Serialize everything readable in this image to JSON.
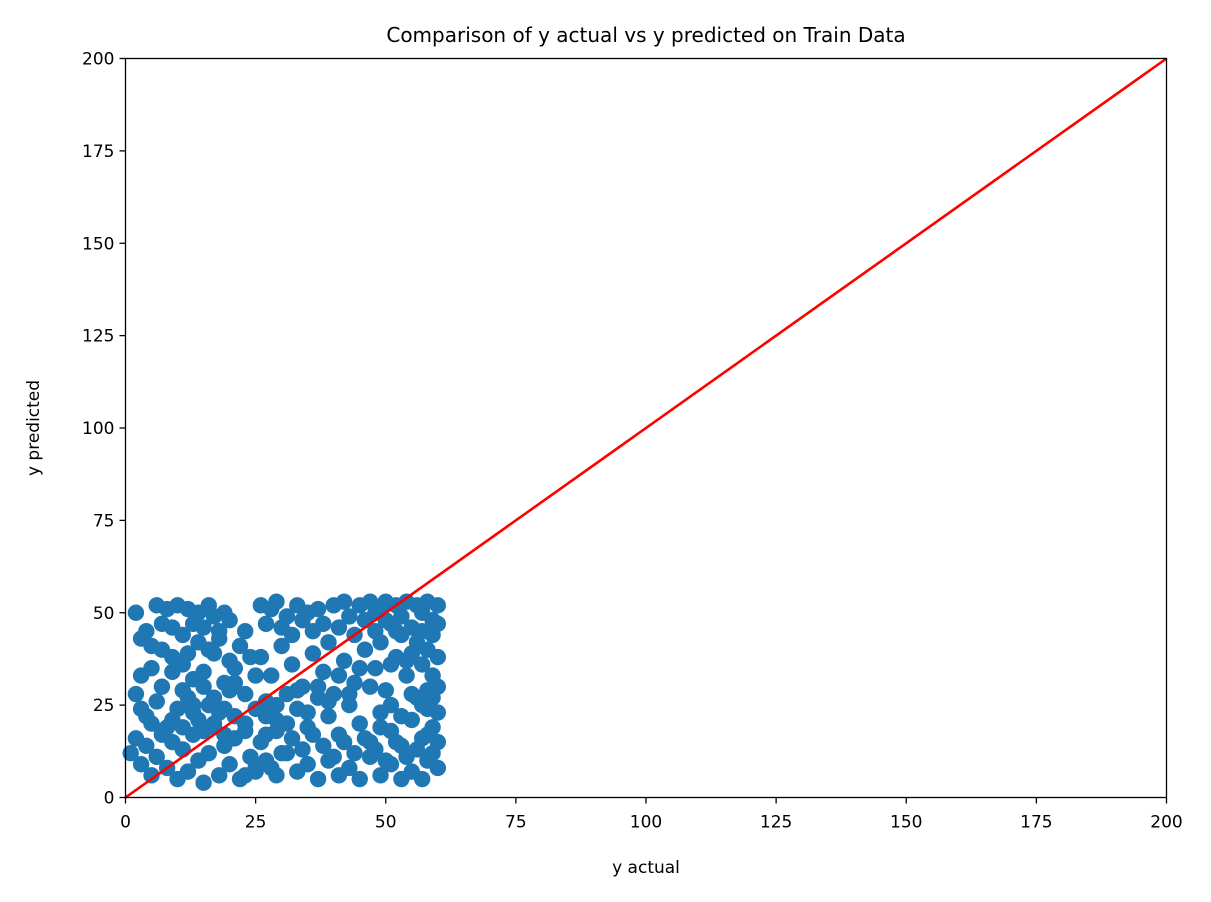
{
  "chart_data": {
    "type": "scatter",
    "title": "Comparison of y actual vs y predicted on Train Data",
    "xlabel": "y actual",
    "ylabel": "y predicted",
    "xlim": [
      0,
      200
    ],
    "ylim": [
      0,
      200
    ],
    "xticks": [
      0,
      25,
      50,
      75,
      100,
      125,
      150,
      175,
      200
    ],
    "yticks": [
      0,
      25,
      50,
      75,
      100,
      125,
      150,
      175,
      200
    ],
    "grid": false,
    "series": [
      {
        "color": "#1f77b4",
        "points": [
          [
            2,
            50
          ],
          [
            3,
            43
          ],
          [
            4,
            45
          ],
          [
            5,
            41
          ],
          [
            6,
            52
          ],
          [
            7,
            47
          ],
          [
            8,
            51
          ],
          [
            9,
            46
          ],
          [
            10,
            52
          ],
          [
            11,
            44
          ],
          [
            12,
            51
          ],
          [
            13,
            47
          ],
          [
            14,
            50
          ],
          [
            15,
            46
          ],
          [
            16,
            52
          ],
          [
            17,
            49
          ],
          [
            18,
            45
          ],
          [
            19,
            50
          ],
          [
            20,
            48
          ],
          [
            23,
            45
          ],
          [
            3,
            33
          ],
          [
            5,
            35
          ],
          [
            7,
            30
          ],
          [
            9,
            38
          ],
          [
            11,
            36
          ],
          [
            13,
            32
          ],
          [
            15,
            34
          ],
          [
            17,
            39
          ],
          [
            19,
            31
          ],
          [
            21,
            35
          ],
          [
            2,
            28
          ],
          [
            4,
            22
          ],
          [
            6,
            26
          ],
          [
            8,
            19
          ],
          [
            10,
            24
          ],
          [
            12,
            27
          ],
          [
            14,
            21
          ],
          [
            16,
            25
          ],
          [
            18,
            23
          ],
          [
            20,
            29
          ],
          [
            1,
            12
          ],
          [
            2,
            16
          ],
          [
            3,
            9
          ],
          [
            4,
            14
          ],
          [
            5,
            6
          ],
          [
            6,
            11
          ],
          [
            7,
            18
          ],
          [
            8,
            8
          ],
          [
            9,
            15
          ],
          [
            10,
            5
          ],
          [
            11,
            13
          ],
          [
            12,
            7
          ],
          [
            13,
            17
          ],
          [
            14,
            10
          ],
          [
            15,
            4
          ],
          [
            16,
            12
          ],
          [
            17,
            19
          ],
          [
            18,
            6
          ],
          [
            19,
            14
          ],
          [
            20,
            9
          ],
          [
            21,
            16
          ],
          [
            22,
            5
          ],
          [
            23,
            20
          ],
          [
            24,
            11
          ],
          [
            25,
            7
          ],
          [
            26,
            15
          ],
          [
            27,
            22
          ],
          [
            28,
            8
          ],
          [
            29,
            18
          ],
          [
            30,
            12
          ],
          [
            26,
            52
          ],
          [
            27,
            47
          ],
          [
            28,
            51
          ],
          [
            29,
            53
          ],
          [
            30,
            46
          ],
          [
            31,
            49
          ],
          [
            32,
            44
          ],
          [
            33,
            52
          ],
          [
            34,
            48
          ],
          [
            35,
            50
          ],
          [
            36,
            45
          ],
          [
            37,
            51
          ],
          [
            38,
            47
          ],
          [
            39,
            42
          ],
          [
            40,
            52
          ],
          [
            41,
            46
          ],
          [
            42,
            53
          ],
          [
            43,
            49
          ],
          [
            44,
            44
          ],
          [
            45,
            52
          ],
          [
            46,
            48
          ],
          [
            47,
            53
          ],
          [
            48,
            45
          ],
          [
            49,
            51
          ],
          [
            50,
            53
          ],
          [
            51,
            47
          ],
          [
            52,
            52
          ],
          [
            53,
            49
          ],
          [
            54,
            53
          ],
          [
            55,
            46
          ],
          [
            56,
            52
          ],
          [
            57,
            50
          ],
          [
            58,
            53
          ],
          [
            59,
            48
          ],
          [
            60,
            52
          ],
          [
            60,
            47
          ],
          [
            59,
            44
          ],
          [
            58,
            40
          ],
          [
            57,
            36
          ],
          [
            60,
            38
          ],
          [
            59,
            33
          ],
          [
            58,
            29
          ],
          [
            60,
            30
          ],
          [
            59,
            27
          ],
          [
            58,
            24
          ],
          [
            60,
            23
          ],
          [
            59,
            19
          ],
          [
            58,
            17
          ],
          [
            60,
            15
          ],
          [
            59,
            12
          ],
          [
            58,
            10
          ],
          [
            60,
            8
          ],
          [
            57,
            5
          ],
          [
            55,
            7
          ],
          [
            53,
            5
          ],
          [
            51,
            9
          ],
          [
            49,
            6
          ],
          [
            47,
            11
          ],
          [
            45,
            5
          ],
          [
            43,
            8
          ],
          [
            41,
            6
          ],
          [
            39,
            10
          ],
          [
            37,
            5
          ],
          [
            35,
            9
          ],
          [
            33,
            7
          ],
          [
            31,
            12
          ],
          [
            29,
            6
          ],
          [
            27,
            10
          ],
          [
            25,
            8
          ],
          [
            23,
            6
          ],
          [
            26,
            38
          ],
          [
            28,
            33
          ],
          [
            30,
            41
          ],
          [
            32,
            36
          ],
          [
            34,
            30
          ],
          [
            36,
            39
          ],
          [
            38,
            34
          ],
          [
            40,
            28
          ],
          [
            42,
            37
          ],
          [
            44,
            31
          ],
          [
            46,
            40
          ],
          [
            48,
            35
          ],
          [
            50,
            29
          ],
          [
            52,
            38
          ],
          [
            54,
            33
          ],
          [
            56,
            27
          ],
          [
            27,
            26
          ],
          [
            29,
            21
          ],
          [
            31,
            28
          ],
          [
            33,
            24
          ],
          [
            35,
            19
          ],
          [
            37,
            27
          ],
          [
            39,
            22
          ],
          [
            41,
            17
          ],
          [
            43,
            25
          ],
          [
            45,
            20
          ],
          [
            47,
            15
          ],
          [
            49,
            23
          ],
          [
            51,
            18
          ],
          [
            53,
            14
          ],
          [
            55,
            21
          ],
          [
            57,
            16
          ],
          [
            32,
            16
          ],
          [
            34,
            13
          ],
          [
            36,
            17
          ],
          [
            38,
            14
          ],
          [
            40,
            11
          ],
          [
            42,
            15
          ],
          [
            44,
            12
          ],
          [
            46,
            16
          ],
          [
            48,
            13
          ],
          [
            50,
            10
          ],
          [
            52,
            15
          ],
          [
            54,
            11
          ],
          [
            56,
            13
          ],
          [
            7,
            40
          ],
          [
            9,
            34
          ],
          [
            11,
            29
          ],
          [
            13,
            25
          ],
          [
            15,
            30
          ],
          [
            17,
            27
          ],
          [
            19,
            24
          ],
          [
            21,
            31
          ],
          [
            23,
            28
          ],
          [
            25,
            33
          ],
          [
            24,
            38
          ],
          [
            22,
            41
          ],
          [
            20,
            37
          ],
          [
            18,
            43
          ],
          [
            16,
            40
          ],
          [
            14,
            42
          ],
          [
            12,
            39
          ],
          [
            3,
            24
          ],
          [
            5,
            20
          ],
          [
            7,
            17
          ],
          [
            9,
            21
          ],
          [
            11,
            19
          ],
          [
            13,
            23
          ],
          [
            15,
            18
          ],
          [
            17,
            20
          ],
          [
            19,
            17
          ],
          [
            21,
            22
          ],
          [
            23,
            18
          ],
          [
            25,
            24
          ],
          [
            27,
            17
          ],
          [
            29,
            25
          ],
          [
            31,
            20
          ],
          [
            33,
            29
          ],
          [
            35,
            23
          ],
          [
            37,
            30
          ],
          [
            39,
            26
          ],
          [
            41,
            33
          ],
          [
            43,
            28
          ],
          [
            45,
            35
          ],
          [
            47,
            30
          ],
          [
            49,
            42
          ],
          [
            51,
            36
          ],
          [
            53,
            44
          ],
          [
            55,
            39
          ],
          [
            57,
            45
          ],
          [
            49,
            19
          ],
          [
            51,
            25
          ],
          [
            53,
            22
          ],
          [
            55,
            28
          ],
          [
            57,
            25
          ],
          [
            54,
            37
          ],
          [
            56,
            42
          ],
          [
            52,
            45
          ],
          [
            50,
            48
          ],
          [
            48,
            50
          ]
        ]
      },
      {
        "type": "line",
        "color": "#ff0000",
        "x": [
          0,
          200
        ],
        "y": [
          0,
          200
        ]
      }
    ]
  }
}
